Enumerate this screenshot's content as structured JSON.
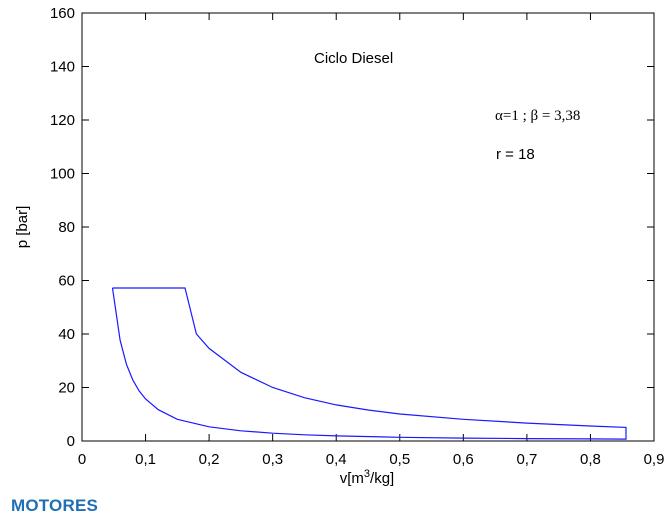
{
  "chart_data": {
    "type": "line",
    "title": "Ciclo Diesel",
    "xlabel": "v[m3/kg]",
    "ylabel": "p [bar]",
    "xlim": [
      0,
      0.9
    ],
    "ylim": [
      0,
      160
    ],
    "x_ticks": [
      0,
      0.1,
      0.2,
      0.3,
      0.4,
      0.5,
      0.6,
      0.7,
      0.8,
      0.9
    ],
    "x_tick_labels": [
      "0",
      "0,1",
      "0,2",
      "0,3",
      "0,4",
      "0,5",
      "0,6",
      "0,7",
      "0,8",
      "0,9"
    ],
    "y_ticks": [
      0,
      20,
      40,
      60,
      80,
      100,
      120,
      140,
      160
    ],
    "y_tick_labels": [
      "0",
      "20",
      "40",
      "60",
      "80",
      "100",
      "120",
      "140",
      "160"
    ],
    "grid": false,
    "series": [
      {
        "color": "#1a1aff",
        "x": [
          0.048,
          0.06,
          0.07,
          0.08,
          0.09,
          0.1,
          0.12,
          0.15,
          0.2,
          0.25,
          0.3,
          0.35,
          0.4,
          0.5,
          0.6,
          0.7,
          0.8,
          0.856,
          0.856,
          0.8,
          0.7,
          0.6,
          0.5,
          0.45,
          0.4,
          0.35,
          0.3,
          0.25,
          0.2,
          0.18,
          0.162,
          0.048
        ],
        "y": [
          57.2,
          37.7,
          28.6,
          22.8,
          18.7,
          15.7,
          11.7,
          8.1,
          5.3,
          3.8,
          2.9,
          2.3,
          1.9,
          1.4,
          1.1,
          0.9,
          0.8,
          0.7,
          5.1,
          5.6,
          6.7,
          8.1,
          10.1,
          11.6,
          13.5,
          16.2,
          20.0,
          25.7,
          34.6,
          40.0,
          57.2,
          57.2
        ]
      }
    ]
  },
  "annotations": {
    "title": "Ciclo Diesel",
    "params": "α=1 ; β = 3,38",
    "ratio": "r = 18"
  },
  "footer": {
    "text": "MOTORES"
  }
}
